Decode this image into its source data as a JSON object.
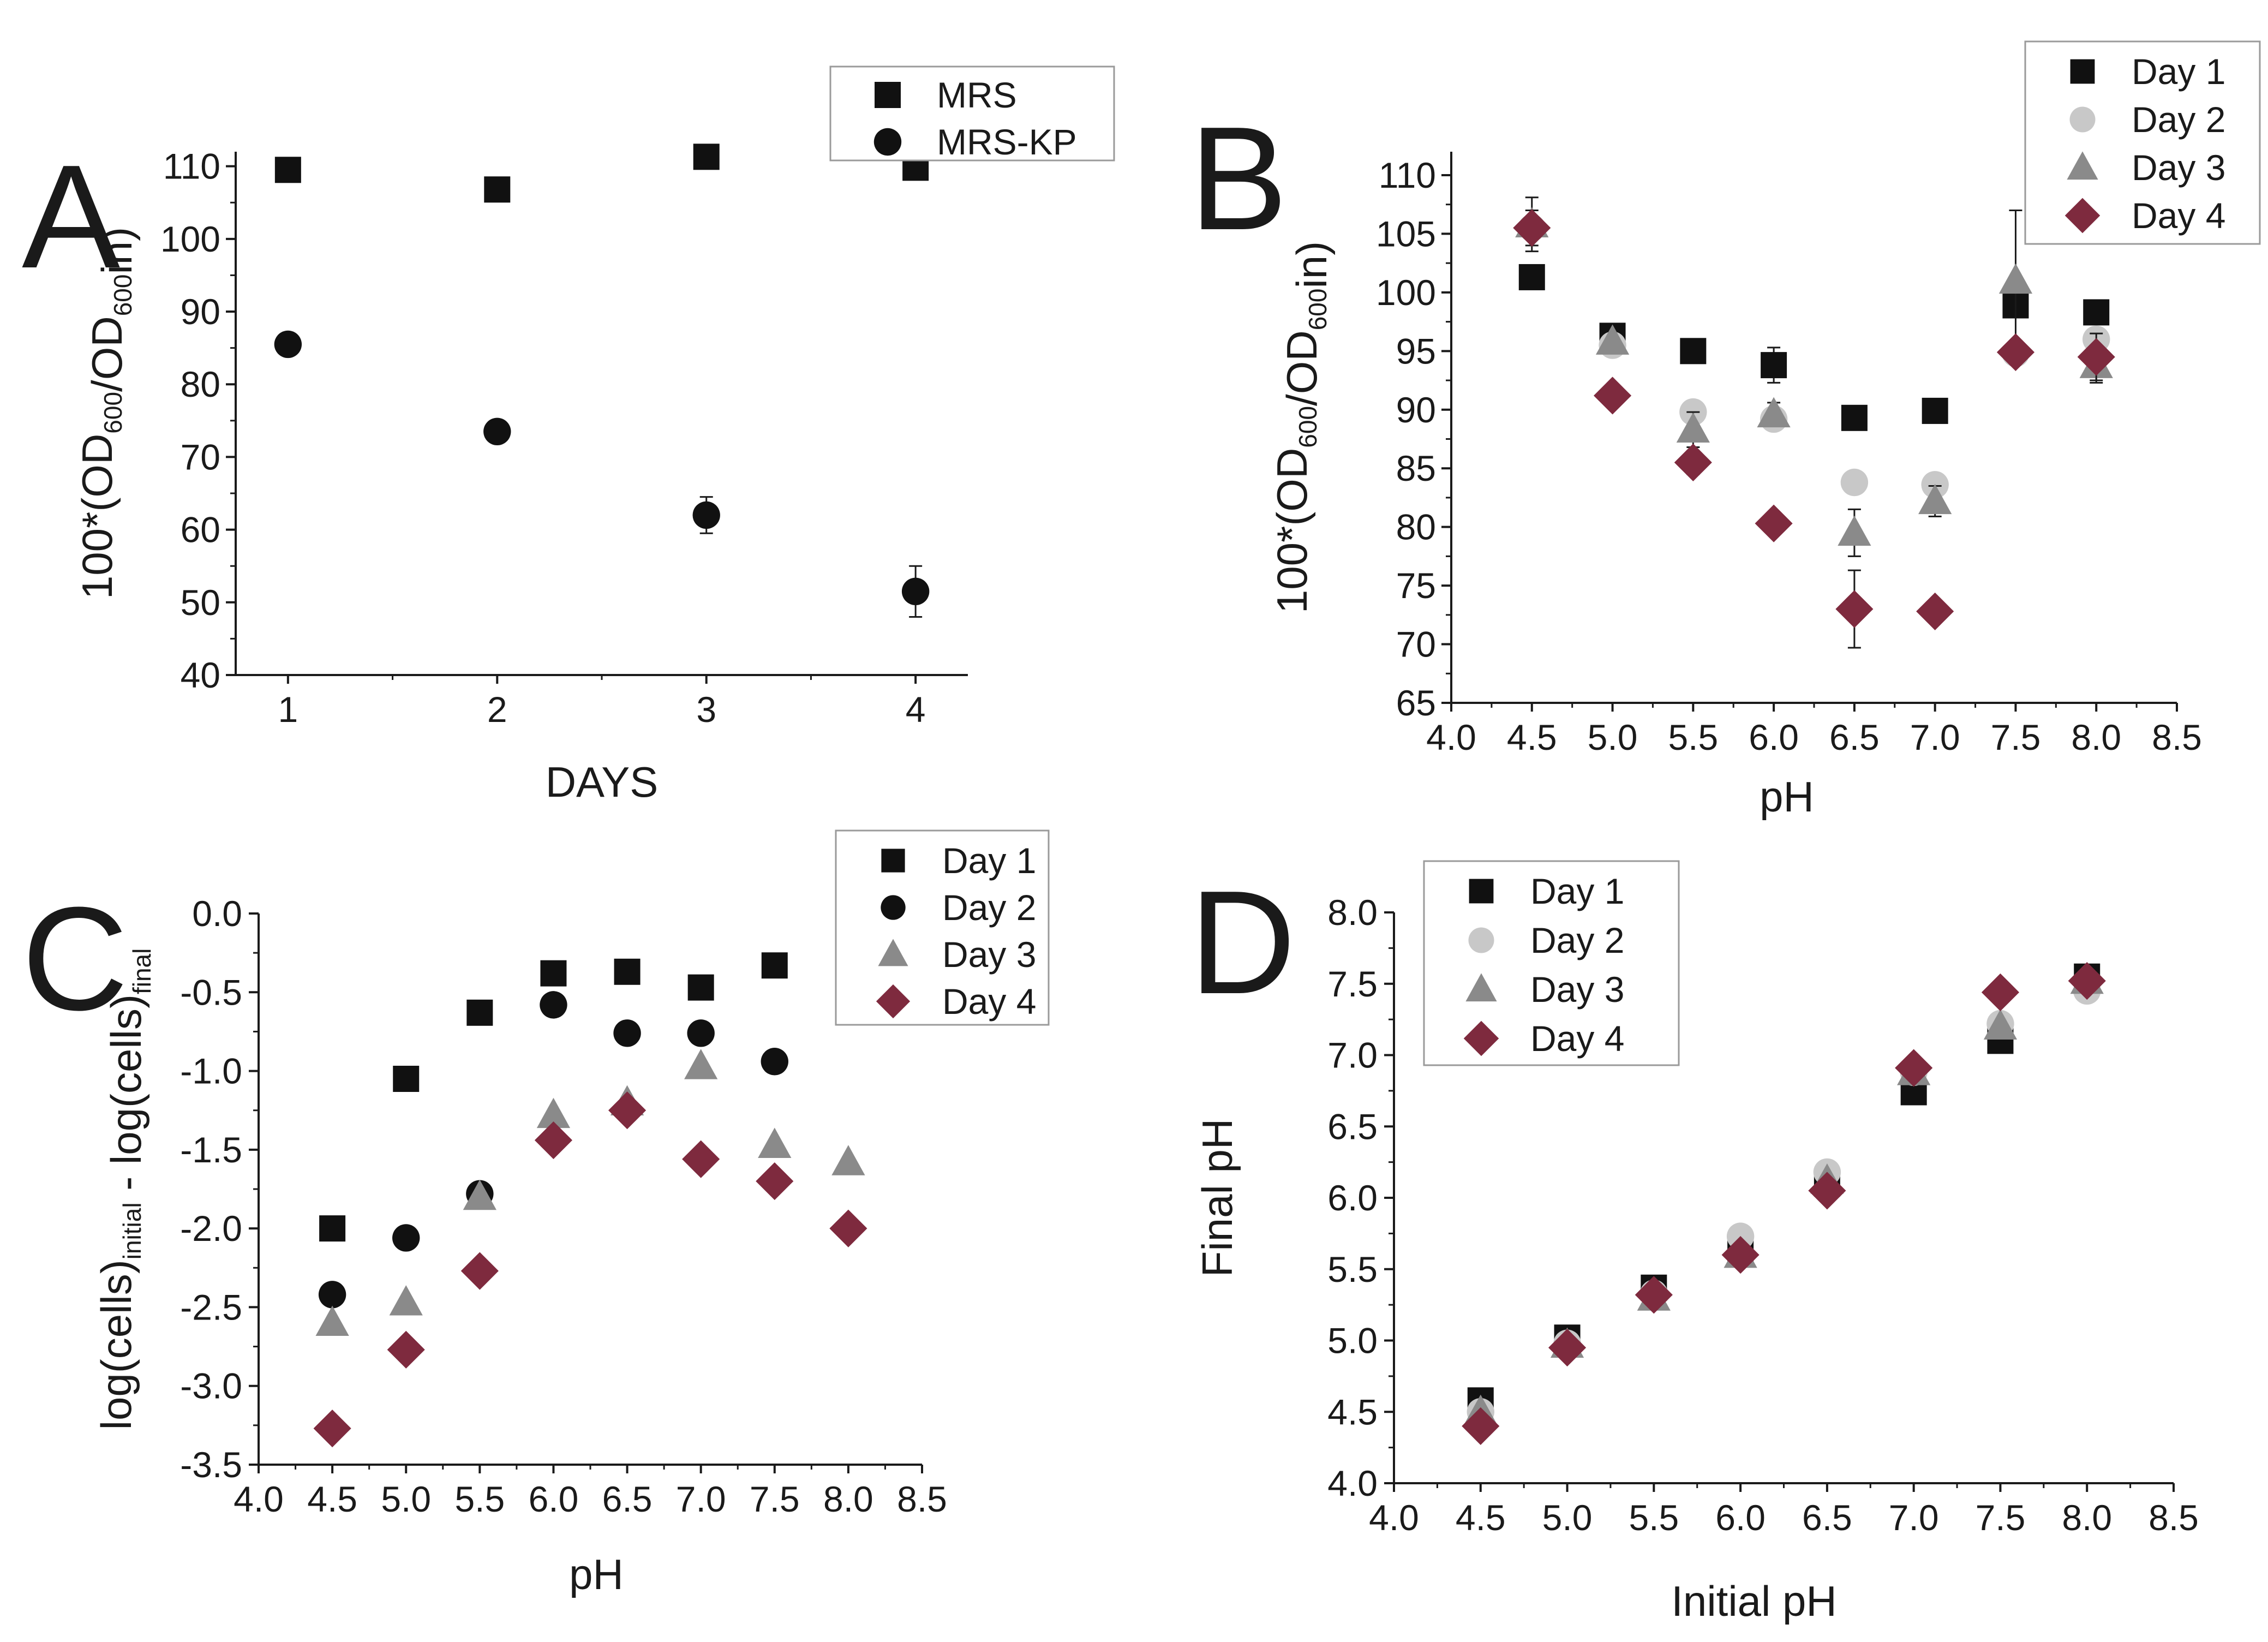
{
  "figure": {
    "colors": {
      "day1": "#111111",
      "day2": "#c8c8c8",
      "day3": "#8a8a8a",
      "day4": "#7e2a3e",
      "mrs": "#111111",
      "mrskp": "#111111"
    }
  },
  "chart_data": [
    {
      "id": "A",
      "panel_label": "A",
      "type": "scatter",
      "xlabel": "DAYS",
      "ylabel": "100*(OD600/OD600in)",
      "ylabel_parts": {
        "pre": "100*(OD",
        "sub1": "600",
        "mid": "/OD",
        "sub2": "600",
        "post": "in)"
      },
      "xlim": [
        0.75,
        4.25
      ],
      "ylim": [
        40,
        112
      ],
      "xticks": [
        1,
        2,
        3,
        4
      ],
      "xtick_labels": [
        "1",
        "2",
        "3",
        "4"
      ],
      "yticks": [
        40,
        50,
        60,
        70,
        80,
        90,
        100,
        110
      ],
      "ytick_labels": [
        "40",
        "50",
        "60",
        "70",
        "80",
        "90",
        "100",
        "110"
      ],
      "legend_position": "top-right",
      "series": [
        {
          "name": "MRS",
          "marker": "square",
          "color": "#111111",
          "x": [
            1,
            2,
            3,
            4
          ],
          "y": [
            109.5,
            106.8,
            111.3,
            109.8
          ]
        },
        {
          "name": "MRS-KP",
          "marker": "circle",
          "color": "#111111",
          "x": [
            1,
            2,
            3,
            4
          ],
          "y": [
            85.5,
            73.5,
            62.0,
            51.5
          ],
          "err": [
            0.8,
            0.8,
            2.5,
            3.5
          ]
        }
      ]
    },
    {
      "id": "B",
      "panel_label": "B",
      "type": "scatter",
      "xlabel": "pH",
      "ylabel": "100*(OD600/OD600in)",
      "ylabel_parts": {
        "pre": "100*(OD",
        "sub1": "600",
        "mid": "/OD",
        "sub2": "600",
        "post": "in)"
      },
      "xlim": [
        4.0,
        8.5
      ],
      "ylim": [
        65,
        112
      ],
      "xticks": [
        4.0,
        4.5,
        5.0,
        5.5,
        6.0,
        6.5,
        7.0,
        7.5,
        8.0,
        8.5
      ],
      "xtick_labels": [
        "4.0",
        "4.5",
        "5.0",
        "5.5",
        "6.0",
        "6.5",
        "7.0",
        "7.5",
        "8.0",
        "8.5"
      ],
      "yticks": [
        65,
        70,
        75,
        80,
        85,
        90,
        95,
        100,
        105,
        110
      ],
      "ytick_labels": [
        "65",
        "70",
        "75",
        "80",
        "85",
        "90",
        "95",
        "100",
        "105",
        "110"
      ],
      "legend_position": "top-right",
      "series": [
        {
          "name": "Day 1",
          "marker": "square",
          "color": "#111111",
          "x": [
            4.5,
            5.0,
            5.5,
            6.0,
            6.5,
            7.0,
            7.5,
            8.0
          ],
          "y": [
            101.3,
            96.3,
            95.0,
            93.8,
            89.3,
            89.9,
            98.9,
            98.3
          ],
          "err": [
            0,
            1.0,
            0,
            1.5,
            0,
            0,
            1.0,
            0
          ]
        },
        {
          "name": "Day 2",
          "marker": "circle",
          "color": "#c8c8c8",
          "x": [
            4.5,
            5.0,
            5.5,
            6.0,
            6.5,
            7.0,
            7.5,
            8.0
          ],
          "y": [
            105.5,
            95.5,
            89.8,
            89.2,
            83.8,
            83.6,
            94.8,
            96.0
          ],
          "err": [
            0,
            0,
            0,
            0,
            0,
            0,
            0,
            0
          ]
        },
        {
          "name": "Day 3",
          "marker": "triangle",
          "color": "#8a8a8a",
          "x": [
            4.5,
            5.0,
            5.5,
            6.0,
            6.5,
            7.0,
            7.5,
            8.0
          ],
          "y": [
            105.8,
            95.8,
            88.3,
            89.6,
            79.5,
            82.2,
            101.0,
            93.8
          ],
          "err": [
            2.3,
            0,
            1.5,
            1.0,
            2.0,
            1.3,
            6.0,
            1.5
          ]
        },
        {
          "name": "Day 4",
          "marker": "diamond",
          "color": "#7e2a3e",
          "x": [
            4.5,
            5.0,
            5.5,
            6.0,
            6.5,
            7.0,
            7.5,
            8.0
          ],
          "y": [
            105.5,
            91.2,
            85.5,
            80.3,
            73.0,
            72.8,
            94.9,
            94.5
          ],
          "err": [
            1.5,
            0.8,
            1.0,
            0.8,
            3.3,
            0.8,
            0.8,
            2.0
          ]
        }
      ]
    },
    {
      "id": "C",
      "panel_label": "C",
      "type": "scatter",
      "xlabel": "pH",
      "ylabel": "log(cells)initial - log(cells)final",
      "ylabel_parts": {
        "pre": "log(cells)",
        "sub1": "initial",
        "mid": " - log(cells)",
        "sub2": "final",
        "post": ""
      },
      "xlim": [
        4.0,
        8.5
      ],
      "ylim": [
        -3.5,
        0.0
      ],
      "xticks": [
        4.0,
        4.5,
        5.0,
        5.5,
        6.0,
        6.5,
        7.0,
        7.5,
        8.0,
        8.5
      ],
      "xtick_labels": [
        "4.0",
        "4.5",
        "5.0",
        "5.5",
        "6.0",
        "6.5",
        "7.0",
        "7.5",
        "8.0",
        "8.5"
      ],
      "yticks": [
        -3.5,
        -3.0,
        -2.5,
        -2.0,
        -1.5,
        -1.0,
        -0.5,
        0.0
      ],
      "ytick_labels": [
        "-3.5",
        "-3.0",
        "-2.5",
        "-2.0",
        "-1.5",
        "-1.0",
        "-0.5",
        "0.0"
      ],
      "legend_position": "top-right",
      "series": [
        {
          "name": "Day 1",
          "marker": "square",
          "color": "#111111",
          "x": [
            4.5,
            5.0,
            5.5,
            6.0,
            6.5,
            7.0,
            7.5
          ],
          "y": [
            -2.0,
            -1.05,
            -0.63,
            -0.38,
            -0.37,
            -0.47,
            -0.33
          ]
        },
        {
          "name": "Day 2",
          "marker": "circle",
          "color": "#111111",
          "x": [
            4.5,
            5.0,
            5.5,
            6.0,
            6.5,
            7.0,
            7.5
          ],
          "y": [
            -2.42,
            -2.06,
            -1.78,
            -0.58,
            -0.76,
            -0.76,
            -0.94
          ]
        },
        {
          "name": "Day 3",
          "marker": "triangle",
          "color": "#8a8a8a",
          "x": [
            4.5,
            5.0,
            5.5,
            6.0,
            6.5,
            7.0,
            7.5,
            8.0
          ],
          "y": [
            -2.6,
            -2.47,
            -1.8,
            -1.28,
            -1.2,
            -0.97,
            -1.47,
            -1.58
          ]
        },
        {
          "name": "Day 4",
          "marker": "diamond",
          "color": "#7e2a3e",
          "x": [
            4.5,
            5.0,
            5.5,
            6.0,
            6.5,
            7.0,
            7.5,
            8.0
          ],
          "y": [
            -3.27,
            -2.77,
            -2.27,
            -1.44,
            -1.25,
            -1.56,
            -1.7,
            -2.0
          ]
        }
      ]
    },
    {
      "id": "D",
      "panel_label": "D",
      "type": "scatter",
      "xlabel": "Initial pH",
      "ylabel": "Final pH",
      "ylabel_parts": {
        "pre": "Final pH",
        "sub1": "",
        "mid": "",
        "sub2": "",
        "post": ""
      },
      "xlim": [
        4.0,
        8.5
      ],
      "ylim": [
        4.0,
        8.0
      ],
      "xticks": [
        4.0,
        4.5,
        5.0,
        5.5,
        6.0,
        6.5,
        7.0,
        7.5,
        8.0,
        8.5
      ],
      "xtick_labels": [
        "4.0",
        "4.5",
        "5.0",
        "5.5",
        "6.0",
        "6.5",
        "7.0",
        "7.5",
        "8.0",
        "8.5"
      ],
      "yticks": [
        4.0,
        4.5,
        5.0,
        5.5,
        6.0,
        6.5,
        7.0,
        7.5,
        8.0
      ],
      "ytick_labels": [
        "4.0",
        "4.5",
        "5.0",
        "5.5",
        "6.0",
        "6.5",
        "7.0",
        "7.5",
        "8.0"
      ],
      "legend_position": "top-left",
      "series": [
        {
          "name": "Day 1",
          "marker": "square",
          "color": "#111111",
          "x": [
            4.5,
            5.0,
            5.5,
            6.0,
            6.5,
            7.0,
            7.5,
            8.0
          ],
          "y": [
            4.58,
            5.02,
            5.37,
            5.62,
            6.1,
            6.74,
            7.1,
            7.55
          ]
        },
        {
          "name": "Day 2",
          "marker": "circle",
          "color": "#c8c8c8",
          "x": [
            4.5,
            5.0,
            5.5,
            6.0,
            6.5,
            7.0,
            7.5,
            8.0
          ],
          "y": [
            4.5,
            4.98,
            5.33,
            5.73,
            6.18,
            6.88,
            7.22,
            7.45
          ]
        },
        {
          "name": "Day 3",
          "marker": "triangle",
          "color": "#8a8a8a",
          "x": [
            4.5,
            5.0,
            5.5,
            6.0,
            6.5,
            7.0,
            7.5,
            8.0
          ],
          "y": [
            4.5,
            4.97,
            5.3,
            5.6,
            6.12,
            6.88,
            7.2,
            7.52
          ]
        },
        {
          "name": "Day 4",
          "marker": "diamond",
          "color": "#7e2a3e",
          "x": [
            4.5,
            5.0,
            5.5,
            6.0,
            6.5,
            7.0,
            7.5,
            8.0
          ],
          "y": [
            4.4,
            4.95,
            5.32,
            5.6,
            6.05,
            6.91,
            7.44,
            7.52
          ]
        }
      ]
    }
  ]
}
